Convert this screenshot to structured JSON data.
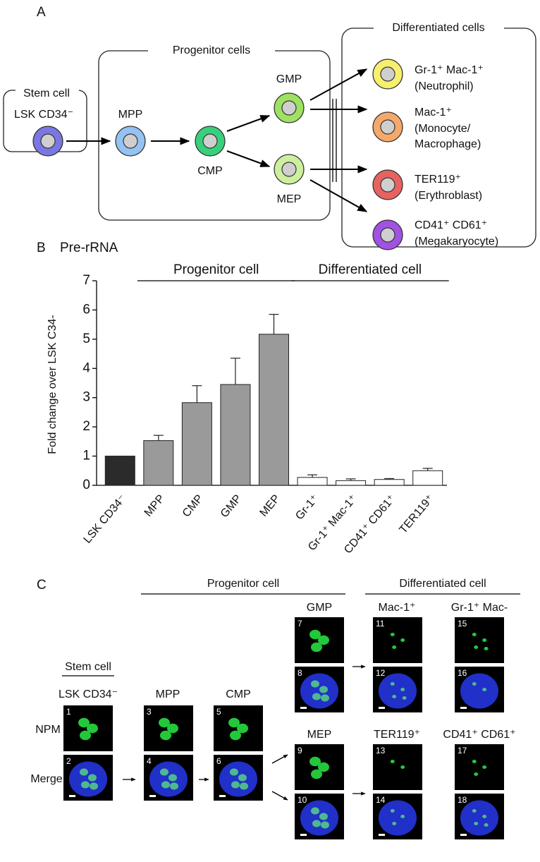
{
  "panel_a": {
    "label": "A",
    "boxes": [
      "Stem cell",
      "Progenitor cells",
      "Differentiated cells"
    ],
    "nodes": [
      {
        "label": "LSK CD34⁻",
        "color": "#7a76e2"
      },
      {
        "label": "MPP",
        "color": "#94c2f2"
      },
      {
        "label": "CMP",
        "color": "#38d07c"
      },
      {
        "label": "GMP",
        "color": "#9ee262"
      },
      {
        "label": "MEP",
        "color": "#cdef9e"
      },
      {
        "label": "Gr-1⁺ Mac-1⁺",
        "description": [
          "(Neutrophil)"
        ],
        "color": "#f7ef6e"
      },
      {
        "label": "Mac-1⁺",
        "description": [
          "(Monocyte/",
          "Macrophage)"
        ],
        "color": "#f4a96a"
      },
      {
        "label": "TER119⁺",
        "description": [
          "(Erythroblast)"
        ],
        "color": "#e86262"
      },
      {
        "label": "CD41⁺ CD61⁺",
        "description": [
          "(Megakaryocyte)"
        ],
        "color": "#a152e2"
      }
    ]
  },
  "chart_data": {
    "type": "bar",
    "panel_label": "B",
    "title": "Pre-rRNA",
    "y_label": "Fold change over LSK C34-",
    "categories": [
      "LSK CD34⁻",
      "MPP",
      "CMP",
      "GMP",
      "MEP",
      "Gr-1⁺",
      "Gr-1⁺ Mac-1⁺",
      "CD41⁺ CD61⁺",
      "TER119⁺"
    ],
    "values": [
      1.0,
      1.53,
      2.83,
      3.45,
      5.17,
      0.27,
      0.16,
      0.2,
      0.5
    ],
    "errors": [
      null,
      0.18,
      0.58,
      0.9,
      0.68,
      0.09,
      0.06,
      0.03,
      0.08
    ],
    "colors": [
      "#2b2b2b",
      "#9a9a9a",
      "#9a9a9a",
      "#9a9a9a",
      "#9a9a9a",
      "#ffffff",
      "#ffffff",
      "#ffffff",
      "#ffffff"
    ],
    "groups": [
      {
        "label": "Progenitor cell",
        "members": [
          "MPP",
          "MEP"
        ]
      },
      {
        "label": "Differentiated cell",
        "members": [
          "Gr-1⁺",
          "TER119⁺"
        ]
      }
    ],
    "ylim": [
      0,
      7
    ],
    "yticks": [
      0,
      1,
      2,
      3,
      4,
      5,
      6,
      7
    ]
  },
  "panel_c": {
    "label": "C",
    "headers": [
      "Progenitor cell",
      "Differentiated cell"
    ],
    "stem_header": "Stem cell",
    "columns": [
      "LSK CD34⁻",
      "MPP",
      "CMP",
      "GMP",
      "MEP",
      "Mac-1⁺",
      "Gr-1⁺ Mac-",
      "TER119⁺",
      "CD41⁺ CD61⁺"
    ],
    "rows": [
      "NPM",
      "Merge"
    ],
    "images": [
      1,
      2,
      3,
      4,
      5,
      6,
      7,
      8,
      9,
      10,
      11,
      12,
      13,
      14,
      15,
      16,
      17,
      18
    ]
  }
}
